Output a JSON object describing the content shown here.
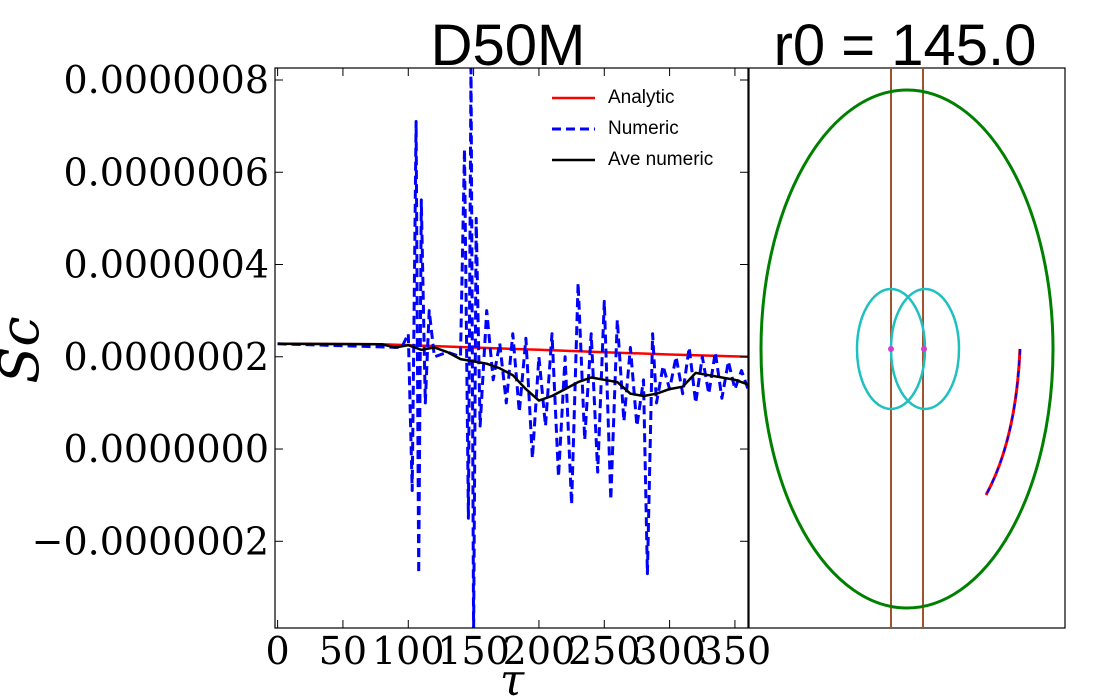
{
  "chart_data": {
    "type": "line",
    "title": "D50M",
    "side_title": "r0 = 145.0",
    "x_label": "τ",
    "y_label": "Sc",
    "xlim": [
      -2,
      360
    ],
    "xticks": [
      0,
      50,
      100,
      150,
      200,
      250,
      300,
      350
    ],
    "ylim": [
      -3.88e-07,
      8.26e-07
    ],
    "yticks": [
      {
        "value": -2e-07,
        "label": "−0.0000002"
      },
      {
        "value": 0,
        "label": "0.0000000"
      },
      {
        "value": 2e-07,
        "label": "0.0000002"
      },
      {
        "value": 4e-07,
        "label": "0.0000004"
      },
      {
        "value": 6e-07,
        "label": "0.0000006"
      },
      {
        "value": 8e-07,
        "label": "0.0000008"
      }
    ],
    "legend": "upper right",
    "series": [
      {
        "name": "Analytic",
        "color": "#ff0000",
        "style": "solid",
        "x": [
          0,
          80,
          150,
          200,
          250,
          300,
          360
        ],
        "values": [
          2.28e-07,
          2.27e-07,
          2.2e-07,
          2.15e-07,
          2.1e-07,
          2.05e-07,
          2e-07
        ]
      },
      {
        "name": "Numeric",
        "color": "#0000ff",
        "style": "dashed",
        "x": [
          0,
          95,
          100,
          103,
          106,
          108,
          110,
          113,
          116,
          120,
          130,
          140,
          143,
          146,
          148,
          150,
          152,
          155,
          160,
          165,
          170,
          175,
          180,
          185,
          190,
          195,
          200,
          205,
          210,
          215,
          220,
          225,
          230,
          235,
          240,
          245,
          250,
          255,
          260,
          265,
          270,
          275,
          280,
          283,
          287,
          290,
          295,
          300,
          305,
          310,
          315,
          320,
          325,
          330,
          335,
          340,
          345,
          350,
          355,
          360
        ],
        "values": [
          2.28e-07,
          2.2e-07,
          2.5e-07,
          -9e-08,
          7.1e-07,
          -2.7e-07,
          5.4e-07,
          1e-07,
          3e-07,
          2e-07,
          2.1e-07,
          2e-07,
          6.5e-07,
          -1.5e-07,
          8.4e-07,
          -4e-07,
          5e-07,
          5e-08,
          3e-07,
          1.5e-07,
          2.3e-07,
          1e-07,
          2.5e-07,
          8e-08,
          2.4e-07,
          -2e-08,
          2e-07,
          5e-08,
          2.5e-07,
          -6e-08,
          2e-07,
          -1.2e-07,
          3.6e-07,
          2e-08,
          2.5e-07,
          -5e-08,
          3.2e-07,
          -1.1e-07,
          2.8e-07,
          6e-08,
          2.2e-07,
          5e-08,
          1.5e-07,
          -2.7e-07,
          2.5e-07,
          1e-07,
          1.8e-07,
          1.3e-07,
          2e-07,
          1.2e-07,
          2.2e-07,
          1e-07,
          2e-07,
          1.2e-07,
          2.1e-07,
          1.1e-07,
          1.9e-07,
          1.3e-07,
          1.7e-07,
          1.3e-07
        ]
      },
      {
        "name": "Ave numeric",
        "color": "#000000",
        "style": "solid",
        "x": [
          0,
          80,
          90,
          100,
          110,
          120,
          130,
          140,
          150,
          160,
          170,
          180,
          190,
          200,
          210,
          220,
          230,
          240,
          250,
          260,
          270,
          280,
          290,
          300,
          310,
          320,
          330,
          340,
          350,
          360
        ],
        "values": [
          2.28e-07,
          2.27e-07,
          2.2e-07,
          2.25e-07,
          2.15e-07,
          2.2e-07,
          2.1e-07,
          1.95e-07,
          1.9e-07,
          1.85e-07,
          1.75e-07,
          1.6e-07,
          1.3e-07,
          1.05e-07,
          1.15e-07,
          1.3e-07,
          1.45e-07,
          1.55e-07,
          1.5e-07,
          1.45e-07,
          1.2e-07,
          1.15e-07,
          1.2e-07,
          1.3e-07,
          1.35e-07,
          1.65e-07,
          1.6e-07,
          1.55e-07,
          1.5e-07,
          1.4e-07
        ]
      }
    ]
  }
}
